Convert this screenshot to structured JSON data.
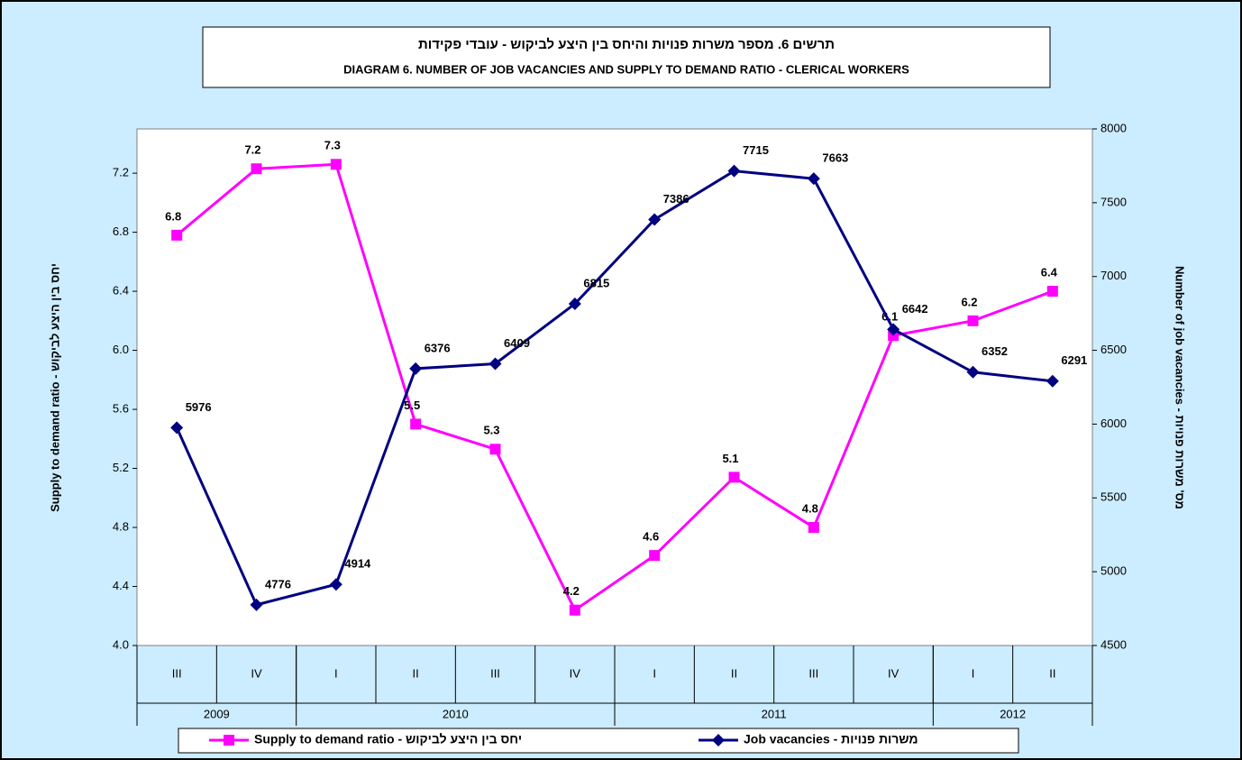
{
  "chart_data": {
    "type": "line",
    "title": "תרשים 6. מספר משרות פנויות והיחס בין היצע לביקוש - עובדי פקידות",
    "subtitle": "DIAGRAM 6. NUMBER OF JOB VACANCIES AND SUPPLY TO DEMAND RATIO - CLERICAL WORKERS",
    "categories": [
      "III",
      "IV",
      "I",
      "II",
      "III",
      "IV",
      "I",
      "II",
      "III",
      "IV",
      "I",
      "II"
    ],
    "category_groups": [
      {
        "label": "2009",
        "count": 2
      },
      {
        "label": "2010",
        "count": 4
      },
      {
        "label": "2011",
        "count": 4
      },
      {
        "label": "2012",
        "count": 2
      }
    ],
    "ylabel": "Supply to demand ratio - יחס בין היצע לביקוש",
    "y2label": "Number of job vacancies - מס' משרות פנויות",
    "ylim": [
      4.0,
      7.5
    ],
    "yticks": [
      {
        "value": 4.0,
        "label": "4.0"
      },
      4.4,
      4.8,
      5.2,
      5.6,
      {
        "value": 6.0,
        "label": "6.0"
      },
      6.4,
      6.8,
      7.2
    ],
    "y2lim": [
      4500,
      8000
    ],
    "y2ticks": [
      4500,
      5000,
      5500,
      6000,
      6500,
      7000,
      7500,
      8000
    ],
    "legend": "bottom",
    "series": [
      {
        "name": "Supply to demand ratio - יחס בין היצע לביקוש",
        "color": "#ff00ff",
        "marker": "square",
        "axis": "y",
        "values": [
          6.78,
          7.23,
          7.26,
          5.5,
          5.33,
          4.24,
          4.61,
          5.14,
          4.8,
          6.1,
          6.2,
          6.4
        ],
        "value_labels": [
          "6.8",
          "7.2",
          "7.3",
          "5.5",
          "5.3",
          "4.2",
          "4.6",
          "5.1",
          "4.8",
          "6.1",
          "6.2",
          "6.4"
        ]
      },
      {
        "name": "Job vacancies - משרות פנויות",
        "color": "#000080",
        "marker": "diamond",
        "axis": "y2",
        "values": [
          5976,
          4776,
          4914,
          6376,
          6409,
          6815,
          7386,
          7715,
          7663,
          6642,
          6352,
          6291
        ]
      }
    ]
  }
}
